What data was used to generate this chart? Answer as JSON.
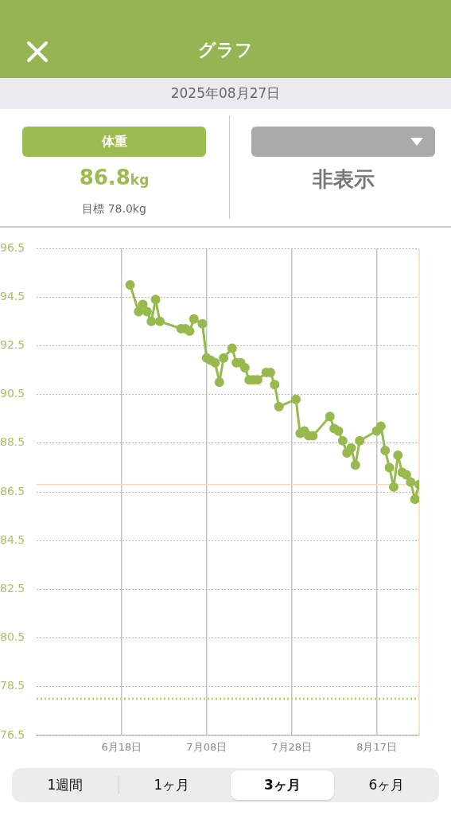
{
  "chart_data": {
    "type": "line",
    "title": "グラフ",
    "subtitle": "2025年08月27日",
    "annotations": [
      "体重",
      "86.8kg",
      "目標 78.0kg",
      "非表示",
      "1週間",
      "1ヶ月",
      "3ヶ月",
      "6ヶ月"
    ],
    "x": [
      "2025-06-20",
      "2025-06-22",
      "2025-06-23",
      "2025-06-24",
      "2025-06-25",
      "2025-06-26",
      "2025-06-27",
      "2025-07-02",
      "2025-07-03",
      "2025-07-04",
      "2025-07-05",
      "2025-07-07",
      "2025-07-08",
      "2025-07-09",
      "2025-07-10",
      "2025-07-11",
      "2025-07-12",
      "2025-07-14",
      "2025-07-15",
      "2025-07-16",
      "2025-07-17",
      "2025-07-18",
      "2025-07-19",
      "2025-07-20",
      "2025-07-22",
      "2025-07-23",
      "2025-07-24",
      "2025-07-25",
      "2025-07-29",
      "2025-07-30",
      "2025-07-31",
      "2025-08-01",
      "2025-08-02",
      "2025-08-06",
      "2025-08-07",
      "2025-08-08",
      "2025-08-09",
      "2025-08-10",
      "2025-08-11",
      "2025-08-12",
      "2025-08-13",
      "2025-08-17",
      "2025-08-18",
      "2025-08-19",
      "2025-08-20",
      "2025-08-21",
      "2025-08-22",
      "2025-08-23",
      "2025-08-24",
      "2025-08-25",
      "2025-08-26",
      "2025-08-27"
    ],
    "series": [
      {
        "color": "#97b94e",
        "values": [
          95.0,
          93.9,
          94.2,
          93.9,
          93.5,
          94.4,
          93.5,
          93.2,
          93.2,
          93.1,
          93.6,
          93.4,
          92.0,
          91.9,
          91.8,
          91.0,
          92.0,
          92.4,
          91.8,
          91.8,
          91.6,
          91.1,
          91.1,
          91.1,
          91.4,
          91.4,
          90.9,
          90.0,
          90.3,
          88.9,
          89.0,
          88.8,
          88.8,
          89.6,
          89.1,
          89.0,
          88.6,
          88.1,
          88.3,
          87.6,
          88.6,
          89.0,
          89.2,
          88.2,
          87.5,
          86.7,
          88.0,
          87.3,
          87.2,
          86.9,
          86.2,
          86.8
        ]
      }
    ],
    "xlim": [
      "2025-05-29",
      "2025-08-27"
    ],
    "xticks": [
      {
        "value": "2025-06-18",
        "label": "6月18日"
      },
      {
        "value": "2025-07-08",
        "label": "7月08日"
      },
      {
        "value": "2025-07-28",
        "label": "7月28日"
      },
      {
        "value": "2025-08-17",
        "label": "8月17日"
      }
    ],
    "ylim": [
      76.5,
      96.5
    ],
    "yticks": [
      76.5,
      78.5,
      80.5,
      82.5,
      84.5,
      86.5,
      88.5,
      90.5,
      92.5,
      94.5,
      96.5
    ],
    "ref_lines": [
      {
        "axis": "y",
        "value": 86.8,
        "color": "#f9dcb5",
        "line_style": "solid"
      },
      {
        "axis": "y",
        "value": 78.0,
        "color": "#b8d46f",
        "line_style": "dotted"
      },
      {
        "axis": "x",
        "value": "2025-08-27",
        "color": "#f9dcb5",
        "line_style": "solid"
      }
    ],
    "grid": true,
    "marker": "circle",
    "line_style": "solid",
    "legend": false
  }
}
